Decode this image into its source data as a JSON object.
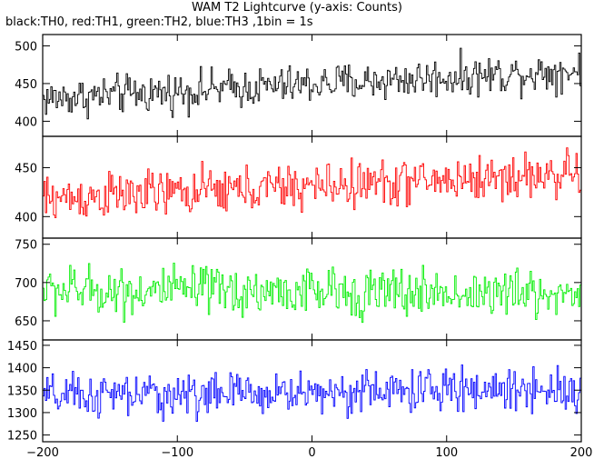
{
  "title": "WAM T2 Lightcurve (y-axis: Counts)",
  "subtitle": "black:TH0, red:TH1, green:TH2, blue:TH3 ,1bin = 1s",
  "chart_data": {
    "type": "line",
    "xlim": [
      -200,
      200
    ],
    "x_ticks": [
      -200,
      -100,
      0,
      100,
      200
    ],
    "x_tick_labels": [
      "−200",
      "−100",
      "0",
      "100",
      "200"
    ],
    "grid": false,
    "panels": [
      {
        "id": "TH0",
        "color": "#000000",
        "ylim": [
          380,
          515
        ],
        "y_ticks": [
          400,
          450,
          500
        ],
        "y_tick_labels": [
          "400",
          "450",
          "500"
        ],
        "baseline": [
          430,
          468
        ],
        "amp": 24
      },
      {
        "id": "TH1",
        "color": "#ff0000",
        "ylim": [
          378,
          482
        ],
        "y_ticks": [
          400,
          450
        ],
        "y_tick_labels": [
          "400",
          "450"
        ],
        "baseline": [
          418,
          444
        ],
        "amp": 22
      },
      {
        "id": "TH2",
        "color": "#00ee00",
        "ylim": [
          625,
          758
        ],
        "y_ticks": [
          650,
          700,
          750
        ],
        "y_tick_labels": [
          "650",
          "700",
          "750"
        ],
        "baseline": [
          690,
          685
        ],
        "amp": 30
      },
      {
        "id": "TH3",
        "color": "#0000ff",
        "ylim": [
          1235,
          1462
        ],
        "y_ticks": [
          1250,
          1300,
          1350,
          1400,
          1450
        ],
        "y_tick_labels": [
          "1250",
          "1300",
          "1350",
          "1400",
          "1450"
        ],
        "baseline": [
          1335,
          1355
        ],
        "amp": 45
      }
    ]
  }
}
